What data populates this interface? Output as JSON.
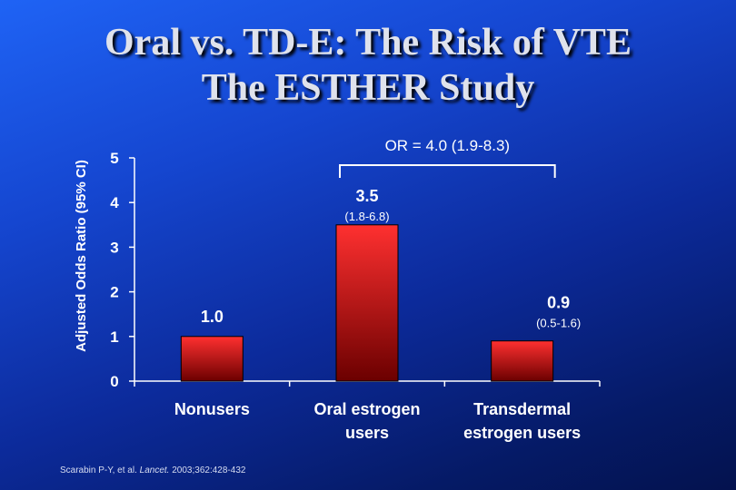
{
  "slide": {
    "title_line1": "Oral vs. TD-E: The Risk of VTE",
    "title_line2": "The ESTHER Study"
  },
  "footnote": {
    "authors": "Scarabin P-Y, et al.",
    "journal": "Lancet.",
    "citation": "2003;362:428-432"
  },
  "colors": {
    "bar_light": "#ff3030",
    "bar_dark": "#6b0000",
    "text": "#ffffff",
    "background": "#1546d0"
  },
  "chart_data": {
    "type": "bar",
    "ylabel": "Adjusted Odds Ratio (95% CI)",
    "ylim": [
      0,
      5
    ],
    "yticks": [
      0,
      1,
      2,
      3,
      4,
      5
    ],
    "categories": [
      [
        "Nonusers"
      ],
      [
        "Oral estrogen",
        "users"
      ],
      [
        "Transdermal",
        "estrogen users"
      ]
    ],
    "values": [
      1.0,
      3.5,
      0.9
    ],
    "value_labels": [
      "1.0",
      "3.5",
      "0.9"
    ],
    "ci_labels": [
      "",
      "(1.8-6.8)",
      "(0.5-1.6)"
    ],
    "bracket": {
      "label": "OR = 4.0 (1.9-8.3)",
      "from": 1,
      "to": 2
    },
    "grid": false
  }
}
